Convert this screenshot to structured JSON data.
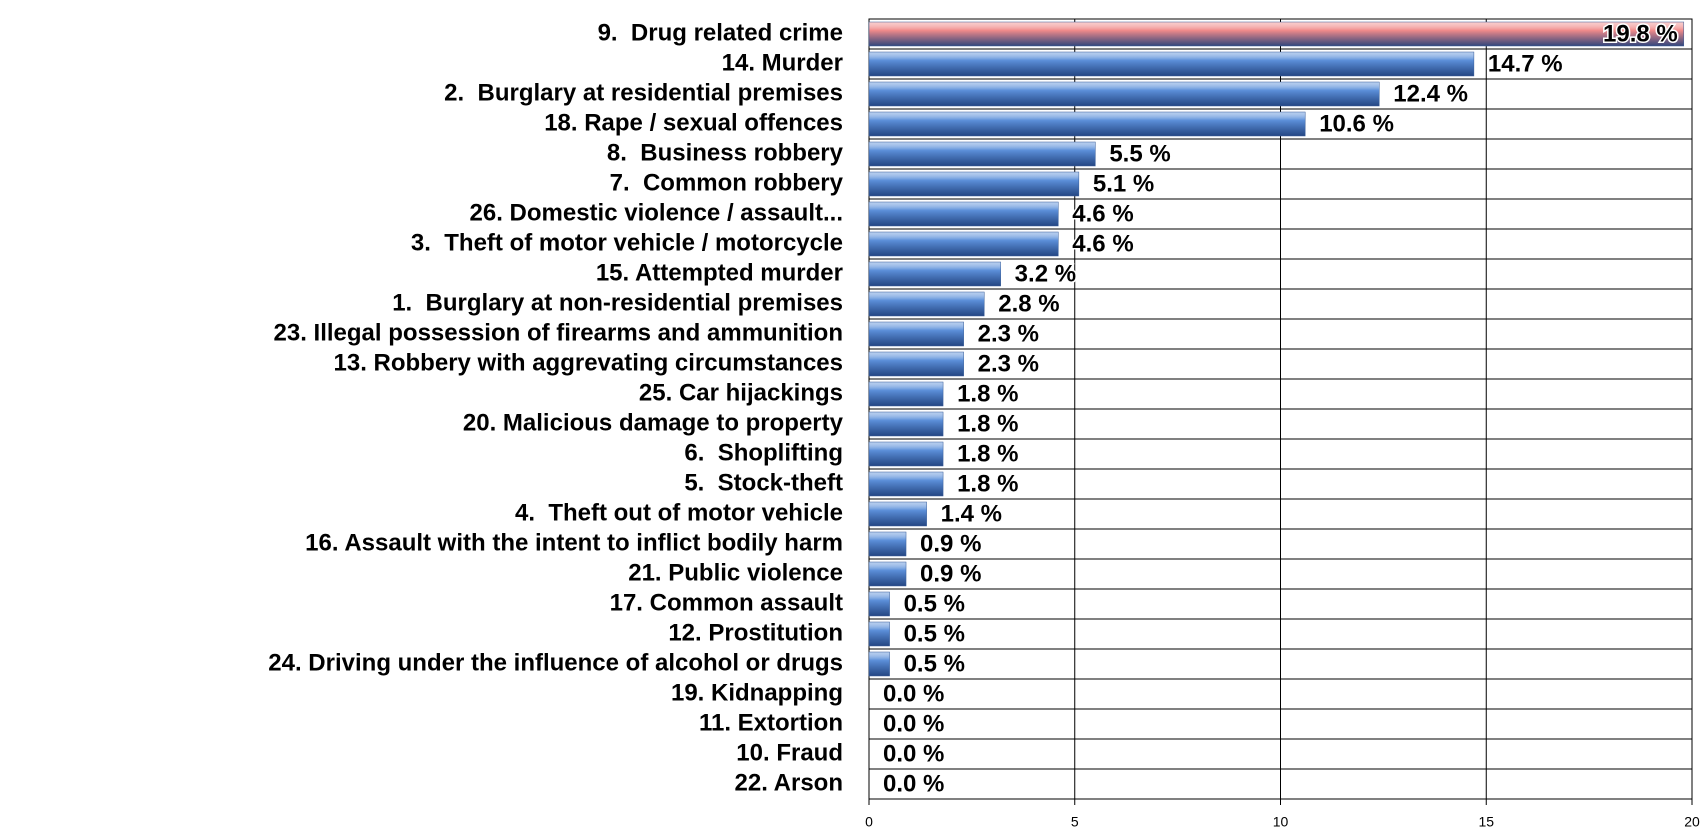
{
  "chart_data": {
    "type": "bar",
    "orientation": "horizontal",
    "categories": [
      "9.  Drug related crime",
      "14. Murder",
      "2.  Burglary at residential premises",
      "18. Rape / sexual offences",
      "8.  Business robbery",
      "7.  Common robbery",
      "26. Domestic violence / assault...",
      "3.  Theft of motor vehicle / motorcycle",
      "15. Attempted murder",
      "1.  Burglary at non-residential premises",
      "23. Illegal possession of firearms and ammunition",
      "13. Robbery with aggrevating circumstances",
      "25. Car hijackings",
      "20. Malicious damage to property",
      "6.  Shoplifting",
      "5.  Stock-theft",
      "4.  Theft out of motor vehicle",
      "16. Assault with the intent to inflict bodily harm",
      "21. Public violence",
      "17. Common assault",
      "12. Prostitution",
      "24. Driving under the influence of alcohol or drugs",
      "19. Kidnapping",
      "11. Extortion",
      "10. Fraud",
      "22. Arson"
    ],
    "values": [
      19.8,
      14.7,
      12.4,
      10.6,
      5.5,
      5.1,
      4.6,
      4.6,
      3.2,
      2.8,
      2.3,
      2.3,
      1.8,
      1.8,
      1.8,
      1.8,
      1.4,
      0.9,
      0.9,
      0.5,
      0.5,
      0.5,
      0.0,
      0.0,
      0.0,
      0.0
    ],
    "value_labels": [
      "19.8 %",
      "14.7 %",
      "12.4 %",
      "10.6 %",
      "5.5 %",
      "5.1 %",
      "4.6 %",
      "4.6 %",
      "3.2 %",
      "2.8 %",
      "2.3 %",
      "2.3 %",
      "1.8 %",
      "1.8 %",
      "1.8 %",
      "1.8 %",
      "1.4 %",
      "0.9 %",
      "0.9 %",
      "0.5 %",
      "0.5 %",
      "0.5 %",
      "0.0 %",
      "0.0 %",
      "0.0 %",
      "0.0 %"
    ],
    "colors": [
      "#f08a8a",
      "#5b8fd9",
      "#5b8fd9",
      "#5b8fd9",
      "#5b8fd9",
      "#5b8fd9",
      "#5b8fd9",
      "#5b8fd9",
      "#5b8fd9",
      "#5b8fd9",
      "#5b8fd9",
      "#5b8fd9",
      "#5b8fd9",
      "#5b8fd9",
      "#5b8fd9",
      "#5b8fd9",
      "#5b8fd9",
      "#5b8fd9",
      "#5b8fd9",
      "#5b8fd9",
      "#5b8fd9",
      "#5b8fd9",
      "#5b8fd9",
      "#5b8fd9",
      "#5b8fd9",
      "#5b8fd9"
    ],
    "xlim": [
      0,
      20
    ],
    "xticks": [
      0,
      5,
      10,
      15,
      20
    ],
    "grid": true
  }
}
